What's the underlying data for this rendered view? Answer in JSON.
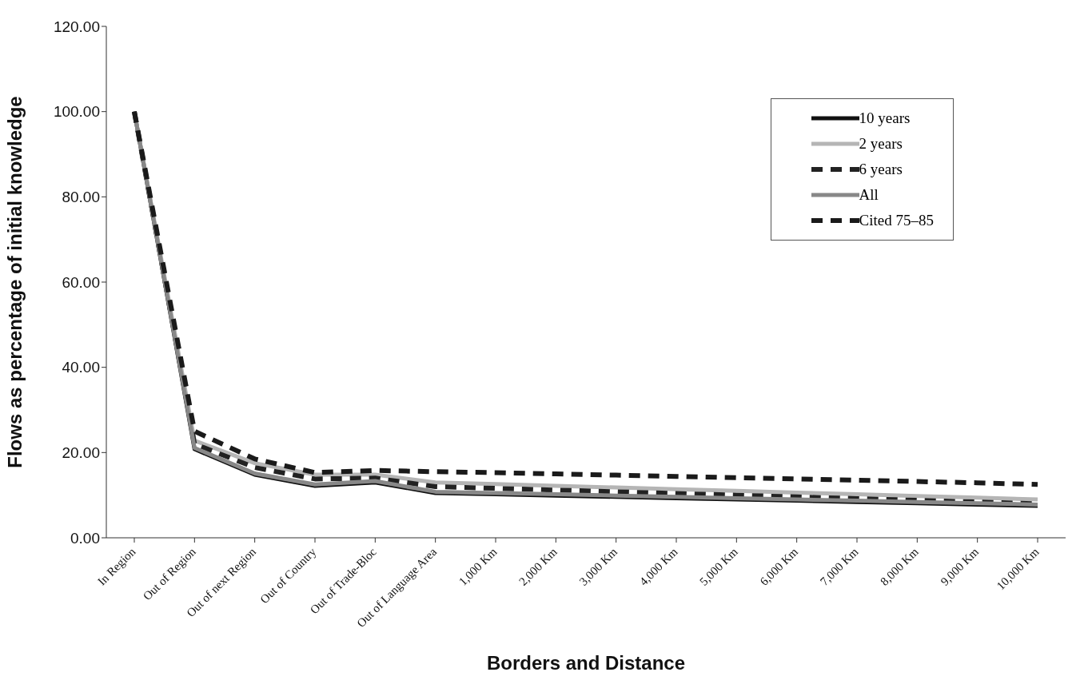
{
  "chart_data": {
    "type": "line",
    "xlabel": "Borders and Distance",
    "ylabel": "Flows as percentage of initial knowledge",
    "categories": [
      "In Region",
      "Out of Region",
      "Out of next Region",
      "Out of Country",
      "Out of Trade-Bloc",
      "Out of Language Area",
      "1,000 Km",
      "2,000 Km",
      "3,000 Km",
      "4,000 Km",
      "5,000 Km",
      "6,000 Km",
      "7,000 Km",
      "8,000 Km",
      "9,000 Km",
      "10,000 Km"
    ],
    "series": [
      {
        "name": "10 years",
        "color": "#111111",
        "line_style": "solid",
        "values": [
          100,
          20.8,
          14.8,
          12.2,
          13.0,
          10.5,
          10.2,
          9.9,
          9.6,
          9.3,
          9.0,
          8.7,
          8.4,
          8.1,
          7.8,
          7.5
        ]
      },
      {
        "name": "2 years",
        "color": "#b5b5b5",
        "line_style": "solid",
        "values": [
          100,
          22.8,
          17.5,
          14.8,
          14.8,
          13.0,
          12.6,
          12.2,
          11.8,
          11.4,
          11.0,
          10.6,
          10.2,
          9.8,
          9.4,
          9.0
        ]
      },
      {
        "name": "6 years",
        "color": "#222222",
        "line_style": "dashed",
        "values": [
          100,
          22.0,
          16.5,
          13.8,
          14.0,
          12.0,
          11.6,
          11.2,
          10.8,
          10.4,
          10.0,
          9.6,
          9.2,
          8.8,
          8.4,
          8.0
        ]
      },
      {
        "name": "All",
        "color": "#888888",
        "line_style": "solid",
        "values": [
          100,
          21.1,
          15.1,
          12.5,
          13.3,
          10.8,
          10.5,
          10.2,
          9.9,
          9.6,
          9.3,
          9.0,
          8.7,
          8.4,
          8.1,
          7.8
        ]
      },
      {
        "name": "Cited 75–85",
        "color": "#1a1a1a",
        "line_style": "dashed",
        "values": [
          100,
          25.0,
          18.5,
          15.3,
          15.8,
          15.5,
          15.3,
          15.0,
          14.7,
          14.4,
          14.1,
          13.8,
          13.5,
          13.2,
          12.9,
          12.5
        ]
      }
    ],
    "ylim": [
      0,
      120
    ],
    "yticks": [
      {
        "value": 0,
        "label": "0.00"
      },
      {
        "value": 20,
        "label": "20.00"
      },
      {
        "value": 40,
        "label": "40.00"
      },
      {
        "value": 60,
        "label": "60.00"
      },
      {
        "value": 80,
        "label": "80.00"
      },
      {
        "value": 100,
        "label": "100.00"
      },
      {
        "value": 120,
        "label": "120.00"
      }
    ],
    "grid": false,
    "legend": "top right",
    "marker": "none"
  }
}
